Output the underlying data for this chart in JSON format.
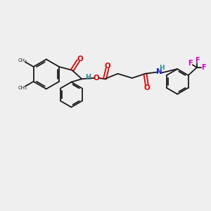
{
  "bg_color": "#efefef",
  "bond_color": "#1a1a1a",
  "o_color": "#dd0000",
  "n_color": "#2222cc",
  "h_color": "#2a9090",
  "f_color": "#cc00cc",
  "bond_width": 1.3,
  "figsize": [
    3.0,
    3.0
  ],
  "dpi": 100,
  "xlim": [
    0,
    12
  ],
  "ylim": [
    0,
    10
  ]
}
